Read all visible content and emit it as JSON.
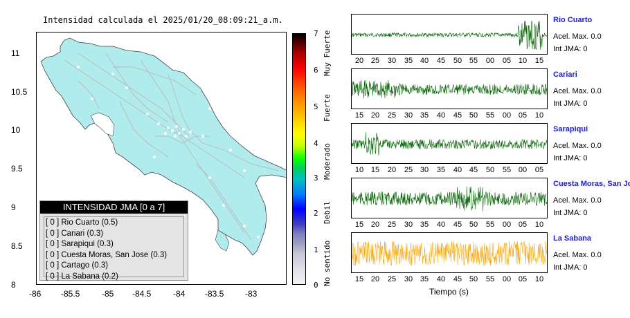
{
  "title": "Intensidad calculada el 2025/01/20_08:09:21_a.m.",
  "map": {
    "lat_ticks": [
      "11",
      "10.5",
      "10",
      "9.5",
      "9",
      "8.5",
      "8"
    ],
    "lon_ticks": [
      "-86",
      "-85.5",
      "-85",
      "-84.5",
      "-84",
      "-83.5",
      "-83"
    ],
    "land_color": "#b0ecec",
    "road_color": "#b9b9b9"
  },
  "legend": {
    "header": "INTENSIDAD JMA [0 a 7]",
    "items": [
      "[ 0 ]  Rio Cuarto (0.5)",
      "[ 0 ]  Cariari (0.3)",
      "[ 0 ]  Sarapiqui (0.3)",
      "[ 0 ]  Cuesta Moras, San Jose (0.3)",
      "[ 0 ]  Cartago (0.3)",
      "[ 0 ]  La Sabana (0.2)"
    ]
  },
  "colorbar": {
    "ticks": [
      "7",
      "6",
      "5",
      "4",
      "3",
      "2",
      "1",
      "0"
    ],
    "categories": [
      "Muy Fuerte",
      "Fuerte",
      "Moderado",
      "Debil",
      "No sentido"
    ]
  },
  "stations": [
    {
      "name": "Rio Cuarto",
      "acel": "Acel. Max. 0.0",
      "int": "Int JMA: 0",
      "color": "#006400",
      "xticks": [
        "20",
        "25",
        "30",
        "35",
        "40",
        "45",
        "50",
        "55",
        "00",
        "05",
        "10",
        "15"
      ]
    },
    {
      "name": "Cariari",
      "acel": "Acel. Max. 0.0",
      "int": "Int JMA: 0",
      "color": "#006400",
      "xticks": [
        "15",
        "20",
        "25",
        "30",
        "35",
        "40",
        "45",
        "50",
        "55",
        "00",
        "05",
        "10"
      ]
    },
    {
      "name": "Sarapiqui",
      "acel": "Acel. Max. 0.0",
      "int": "Int JMA: 0",
      "color": "#006400",
      "xticks": [
        "10",
        "15",
        "20",
        "25",
        "30",
        "35",
        "40",
        "45",
        "50",
        "55",
        "00",
        "05"
      ]
    },
    {
      "name": "Cuesta Moras, San Jose",
      "acel": "Acel. Max. 0.0",
      "int": "Int JMA: 0",
      "color": "#006400",
      "xticks": [
        "15",
        "20",
        "25",
        "30",
        "35",
        "40",
        "45",
        "50",
        "55",
        "00",
        "05",
        "10"
      ]
    },
    {
      "name": "La Sabana",
      "acel": "Acel. Max. 0.0",
      "int": "Int JMA: 0",
      "color": "#ffa500",
      "xticks": [
        "15",
        "20",
        "25",
        "30",
        "35",
        "40",
        "45",
        "50",
        "55",
        "00",
        "05",
        "10"
      ]
    }
  ],
  "x_axis_title": "Tiempo (s)"
}
